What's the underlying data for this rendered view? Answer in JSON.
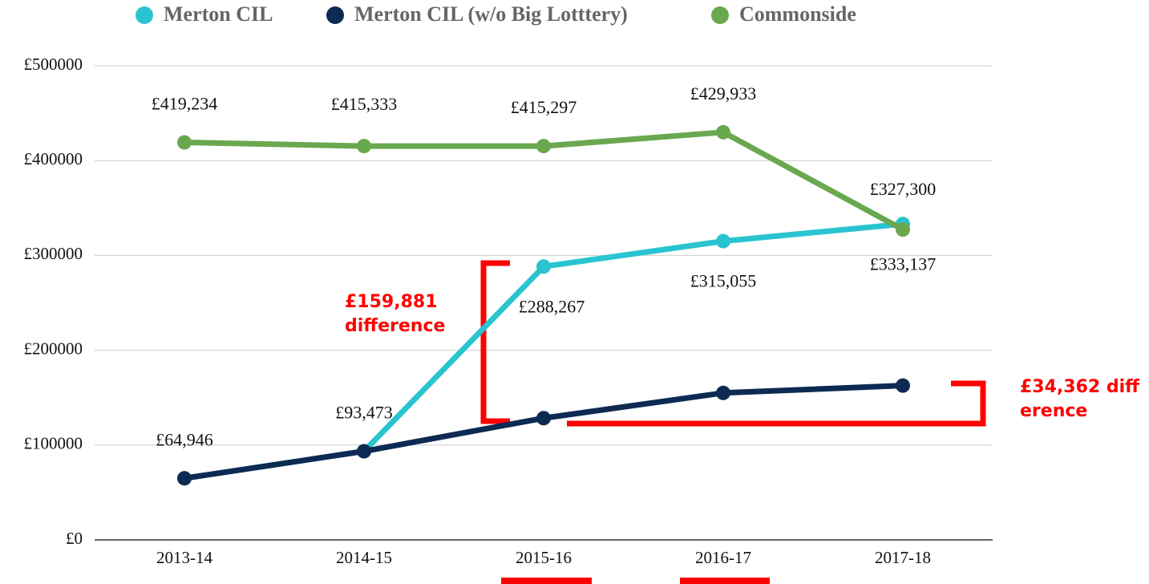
{
  "chart_data": {
    "type": "line",
    "categories": [
      "2013-14",
      "2014-15",
      "2015-16",
      "2016-17",
      "2017-18"
    ],
    "series": [
      {
        "name": "Merton CIL",
        "color": "#29c4cf",
        "values": [
          64946,
          93473,
          288267,
          315055,
          333137
        ],
        "value_labels": [
          "£64,946",
          "£93,473",
          "£288,267",
          "£315,055",
          "£333,137"
        ]
      },
      {
        "name": "Merton CIL (w/o Big Lotttery)",
        "color": "#0d2a52",
        "values": [
          64946,
          93473,
          128386,
          155000,
          162748
        ]
      },
      {
        "name": "Commonside",
        "color": "#6aa84f",
        "values": [
          419234,
          415333,
          415297,
          429933,
          327300
        ],
        "value_labels": [
          "£419,234",
          "£415,333",
          "£415,297",
          "£429,933",
          "£327,300"
        ]
      }
    ],
    "ylim": [
      0,
      500000
    ],
    "yticks": [
      {
        "value": 0,
        "label": "£0"
      },
      {
        "value": 100000,
        "label": "£100000"
      },
      {
        "value": 200000,
        "label": "£200000"
      },
      {
        "value": 300000,
        "label": "£300000"
      },
      {
        "value": 400000,
        "label": "£400000"
      },
      {
        "value": 500000,
        "label": "£500000"
      }
    ],
    "grid": true,
    "legend": "top",
    "annotations": [
      "£159,881 difference",
      "£34,362 difference"
    ]
  }
}
